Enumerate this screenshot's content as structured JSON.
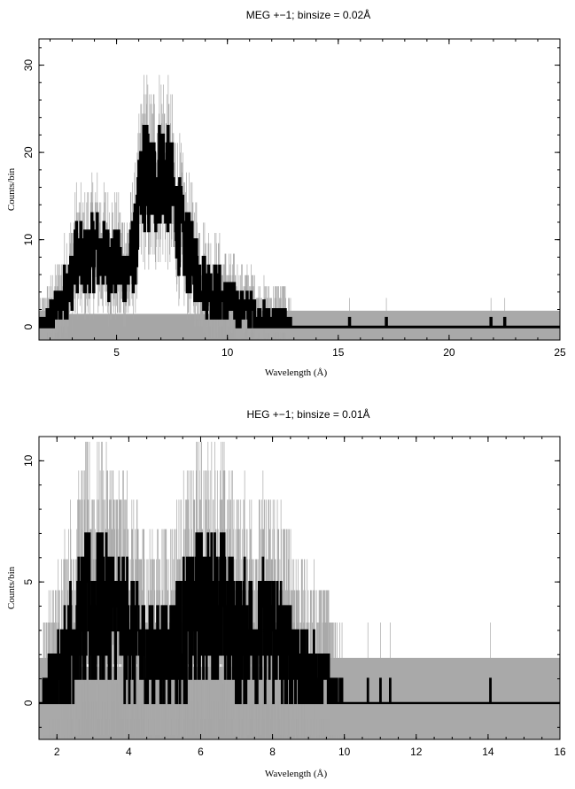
{
  "chart_data": [
    {
      "type": "line",
      "title": "MEG +−1; binsize = 0.02Å",
      "xlabel": "Wavelength (Å)",
      "ylabel": "Counts/bin",
      "xlim": [
        1.5,
        25
      ],
      "ylim": [
        -1.5,
        33
      ],
      "xticks": [
        5,
        10,
        15,
        20,
        25
      ],
      "yticks": [
        0,
        10,
        20,
        30
      ],
      "xtick_labels": [
        "5",
        "10",
        "15",
        "20",
        "25"
      ],
      "ytick_labels": [
        "0",
        "10",
        "20",
        "30"
      ],
      "grid": false,
      "colors": {
        "data": "#000000",
        "errors": "#a9a9a9",
        "background_band": "#a6a6a6"
      },
      "background_band": [
        -1.5,
        1.5
      ],
      "series": [
        {
          "values_shape": "histogram",
          "x": [
            1.5,
            2.0,
            2.5,
            3.0,
            3.2,
            3.5,
            4.0,
            4.5,
            5.0,
            5.5,
            5.9,
            6.2,
            6.5,
            6.8,
            7.0,
            7.3,
            7.6,
            8.0,
            8.5,
            9.0,
            9.5,
            10.0,
            10.5,
            11.0,
            11.5,
            12.0,
            12.5,
            13.0,
            13.5,
            14.0,
            15.0,
            15.5,
            17.7,
            18.7,
            20.3,
            22.0,
            22.8,
            24.9
          ],
          "y": [
            0,
            1,
            3,
            6,
            8,
            7,
            9,
            8,
            7,
            6,
            10,
            18,
            16,
            17,
            18,
            17,
            14,
            10,
            7,
            5,
            4,
            3,
            2,
            2,
            1,
            1,
            1,
            0,
            0,
            0,
            0,
            0,
            0,
            0,
            0,
            0,
            0,
            0
          ]
        }
      ]
    },
    {
      "type": "line",
      "title": "HEG +−1; binsize = 0.01Å",
      "xlabel": "Wavelength (Å)",
      "ylabel": "Counts/bin",
      "xlim": [
        1.5,
        16
      ],
      "ylim": [
        -1.5,
        11
      ],
      "xticks": [
        2,
        4,
        6,
        8,
        10,
        12,
        14,
        16
      ],
      "yticks": [
        0,
        5,
        10
      ],
      "xtick_labels": [
        "2",
        "4",
        "6",
        "8",
        "10",
        "12",
        "14",
        "16"
      ],
      "ytick_labels": [
        "0",
        "5",
        "10"
      ],
      "grid": false,
      "colors": {
        "data": "#000000",
        "errors": "#a9a9a9",
        "background_band": "#a6a6a6"
      },
      "background_band": [
        -1.5,
        1.5
      ],
      "series": [
        {
          "values_shape": "histogram",
          "x": [
            1.5,
            2.0,
            2.5,
            3.0,
            3.5,
            4.0,
            4.5,
            5.0,
            5.5,
            6.0,
            6.5,
            7.0,
            7.5,
            8.0,
            8.5,
            9.0,
            9.5,
            10.0,
            10.5,
            11.0,
            11.5,
            12.0,
            12.5,
            13.0,
            14.0,
            15.0,
            16.0
          ],
          "y": [
            0,
            1,
            3,
            4,
            4,
            3,
            2,
            2,
            3,
            4,
            4,
            3,
            3,
            3,
            2,
            1,
            1,
            0,
            0,
            0,
            0,
            0,
            0,
            0,
            0,
            0,
            0
          ]
        }
      ]
    }
  ]
}
